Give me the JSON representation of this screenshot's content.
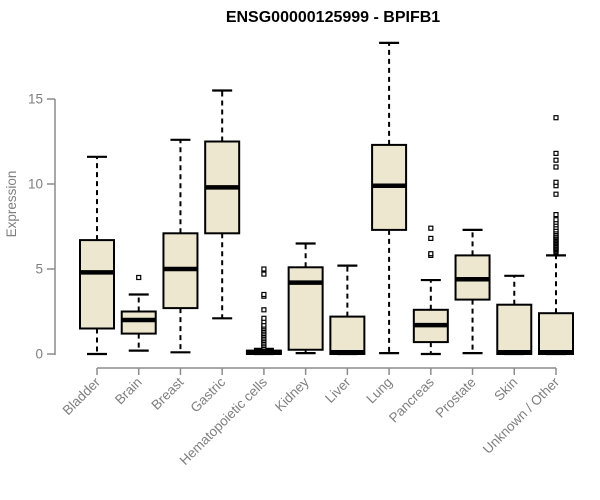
{
  "chart_data": {
    "type": "boxplot",
    "title": "ENSG00000125999 - BPIFB1",
    "ylabel": "Expression",
    "xlabel": "",
    "yticks": [
      0,
      5,
      10,
      15
    ],
    "ylim": [
      0,
      18.6
    ],
    "grid": false,
    "legend": false,
    "categories": [
      "Bladder",
      "Brain",
      "Breast",
      "Gastric",
      "Hematopoietic cells",
      "Kidney",
      "Liver",
      "Lung",
      "Pancreas",
      "Prostate",
      "Skin",
      "Unknown / Other"
    ],
    "boxes": [
      {
        "category": "Bladder",
        "whisker_low": 0,
        "q1": 1.5,
        "median": 4.8,
        "q3": 6.7,
        "whisker_high": 11.6,
        "outliers": []
      },
      {
        "category": "Brain",
        "whisker_low": 0.2,
        "q1": 1.2,
        "median": 2.0,
        "q3": 2.5,
        "whisker_high": 3.5,
        "outliers": [
          4.5
        ]
      },
      {
        "category": "Breast",
        "whisker_low": 0.1,
        "q1": 2.7,
        "median": 5.0,
        "q3": 7.1,
        "whisker_high": 12.6,
        "outliers": []
      },
      {
        "category": "Gastric",
        "whisker_low": 2.1,
        "q1": 7.1,
        "median": 9.8,
        "q3": 12.5,
        "whisker_high": 15.5,
        "outliers": []
      },
      {
        "category": "Hematopoietic cells",
        "whisker_low": 0,
        "q1": 0,
        "median": 0.07,
        "q3": 0.2,
        "whisker_high": 0.3,
        "outliers": [
          0.4,
          0.5,
          0.6,
          0.7,
          0.8,
          0.9,
          1.0,
          1.1,
          1.2,
          1.3,
          1.4,
          1.5,
          1.6,
          1.7,
          1.9,
          2.1,
          2.6,
          3.4,
          3.5,
          4.7,
          5.0
        ]
      },
      {
        "category": "Kidney",
        "whisker_low": 0.05,
        "q1": 0.25,
        "median": 4.2,
        "q3": 5.1,
        "whisker_high": 6.5,
        "outliers": []
      },
      {
        "category": "Liver",
        "whisker_low": 0,
        "q1": 0,
        "median": 0.1,
        "q3": 2.2,
        "whisker_high": 5.2,
        "outliers": []
      },
      {
        "category": "Lung",
        "whisker_low": 0.05,
        "q1": 7.3,
        "median": 9.9,
        "q3": 12.3,
        "whisker_high": 18.3,
        "outliers": []
      },
      {
        "category": "Pancreas",
        "whisker_low": 0,
        "q1": 0.7,
        "median": 1.7,
        "q3": 2.6,
        "whisker_high": 4.35,
        "outliers": [
          5.8,
          5.9,
          6.8,
          7.4
        ]
      },
      {
        "category": "Prostate",
        "whisker_low": 0.05,
        "q1": 3.2,
        "median": 4.4,
        "q3": 5.8,
        "whisker_high": 7.3,
        "outliers": []
      },
      {
        "category": "Skin",
        "whisker_low": 0,
        "q1": 0,
        "median": 0.1,
        "q3": 2.9,
        "whisker_high": 4.6,
        "outliers": []
      },
      {
        "category": "Unknown / Other",
        "whisker_low": 0,
        "q1": 0,
        "median": 0.1,
        "q3": 2.4,
        "whisker_high": 5.8,
        "outliers": [
          6.0,
          6.07,
          6.14,
          6.21,
          6.28,
          6.35,
          6.42,
          6.5,
          6.57,
          6.64,
          6.71,
          6.78,
          6.85,
          6.93,
          7.0,
          7.1,
          7.2,
          7.3,
          7.45,
          7.6,
          7.75,
          7.9,
          8.2,
          9.4,
          9.9,
          10.1,
          11.0,
          11.4,
          11.8,
          13.9
        ]
      }
    ]
  },
  "colors": {
    "box_fill": "#EDE7CF",
    "box_stroke": "#000000",
    "median": "#000000",
    "whisker": "#000000",
    "outlier_stroke": "#000000",
    "axis": "#8C8C8C",
    "tick_label": "#7F7F7F",
    "title": "#000000",
    "background": "#FFFFFF"
  }
}
